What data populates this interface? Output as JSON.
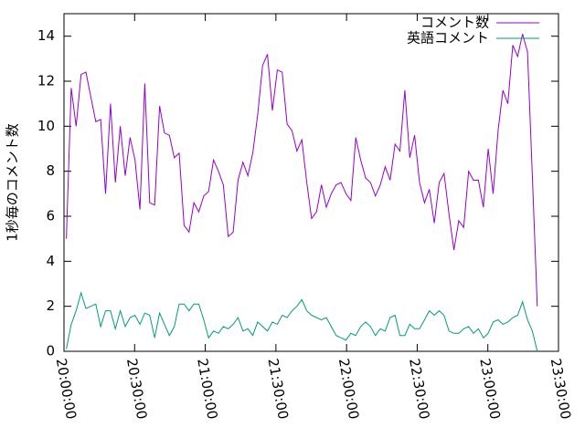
{
  "chart_data": {
    "type": "line",
    "y_label": "1秒毎のコメント数",
    "x": [
      72060,
      72185,
      72310,
      72435,
      72560,
      72685,
      72810,
      72935,
      73060,
      73185,
      73310,
      73435,
      73560,
      73685,
      73810,
      73935,
      74060,
      74185,
      74310,
      74435,
      74560,
      74685,
      74810,
      74935,
      75060,
      75185,
      75310,
      75435,
      75560,
      75685,
      75810,
      75935,
      76060,
      76185,
      76310,
      76435,
      76560,
      76685,
      76810,
      76935,
      77060,
      77185,
      77310,
      77435,
      77560,
      77685,
      77810,
      77935,
      78060,
      78185,
      78310,
      78435,
      78560,
      78685,
      78810,
      78935,
      79060,
      79185,
      79310,
      79435,
      79560,
      79685,
      79810,
      79935,
      80060,
      80185,
      80310,
      80435,
      80560,
      80685,
      80810,
      80935,
      81060,
      81185,
      81310,
      81435,
      81560,
      81685,
      81810,
      81935,
      82060,
      82185,
      82310,
      82435,
      82560,
      82685,
      82810,
      82935,
      83060,
      83185,
      83310,
      83435,
      83560,
      83685,
      83810,
      83935,
      84060
    ],
    "series": [
      {
        "name": "コメント数",
        "color": "#9400d3",
        "values": [
          5,
          11.7,
          10,
          12.3,
          12.4,
          11.3,
          10.2,
          10.3,
          7,
          11,
          7.5,
          10,
          7.8,
          9.5,
          8.5,
          6.3,
          11.9,
          6.6,
          6.5,
          10.9,
          9.7,
          9.6,
          8.6,
          8.8,
          5.6,
          5.3,
          6.6,
          6.2,
          6.9,
          7.1,
          8.5,
          8.0,
          7.4,
          5.1,
          5.3,
          7.6,
          8.4,
          7.8,
          8.8,
          10.5,
          12.7,
          13.2,
          10.7,
          12.5,
          12.4,
          10.1,
          9.8,
          8.9,
          9.4,
          7.5,
          5.9,
          6.2,
          7.4,
          6.4,
          7.0,
          7.4,
          7.5,
          7.0,
          6.7,
          9.5,
          8.5,
          7.7,
          7.5,
          6.9,
          7.4,
          8.2,
          7.6,
          9.2,
          8.9,
          11.6,
          8.6,
          9.6,
          7.5,
          6.6,
          7.2,
          5.7,
          7.5,
          7.9,
          6.1,
          4.5,
          5.8,
          5.5,
          8.0,
          7.6,
          7.6,
          6.4,
          9.0,
          7.0,
          9.8,
          11.6,
          11.0,
          13.6,
          13.1,
          14.1,
          13.3,
          7.8,
          2.0
        ]
      },
      {
        "name": "英語コメント",
        "color": "#009e73",
        "values": [
          0.1,
          1.2,
          1.8,
          2.6,
          1.9,
          2.0,
          2.1,
          1.1,
          1.8,
          1.8,
          1.0,
          1.8,
          1.1,
          1.5,
          1.6,
          1.2,
          1.7,
          1.6,
          0.6,
          1.7,
          1.2,
          0.7,
          1.1,
          2.1,
          2.1,
          1.8,
          2.1,
          2.1,
          1.4,
          0.6,
          0.9,
          0.8,
          1.1,
          1.0,
          1.2,
          1.5,
          0.9,
          1.0,
          0.7,
          1.3,
          1.1,
          0.9,
          1.3,
          1.2,
          1.6,
          1.5,
          1.8,
          2.0,
          2.3,
          1.8,
          1.6,
          1.5,
          1.4,
          1.5,
          1.1,
          0.7,
          0.6,
          0.5,
          0.8,
          0.7,
          1.1,
          1.3,
          1.1,
          0.7,
          1.0,
          0.9,
          1.5,
          1.6,
          0.7,
          0.7,
          1.2,
          1.0,
          1.0,
          1.4,
          1.8,
          1.6,
          1.8,
          1.6,
          0.9,
          0.8,
          0.8,
          1.0,
          1.1,
          0.8,
          1.0,
          0.6,
          0.8,
          1.3,
          1.4,
          1.2,
          1.3,
          1.5,
          1.6,
          2.2,
          1.4,
          0.9,
          0.0
        ]
      }
    ],
    "xlim": [
      72000,
      84600
    ],
    "xticks": [
      {
        "value": 72000,
        "label": "20:00:00"
      },
      {
        "value": 73800,
        "label": "20:30:00"
      },
      {
        "value": 75600,
        "label": "21:00:00"
      },
      {
        "value": 77400,
        "label": "21:30:00"
      },
      {
        "value": 79200,
        "label": "22:00:00"
      },
      {
        "value": 81000,
        "label": "22:30:00"
      },
      {
        "value": 82800,
        "label": "23:00:00"
      },
      {
        "value": 84600,
        "label": "23:30:00"
      }
    ],
    "ylim": [
      0,
      15
    ],
    "yticks": [
      0,
      2,
      4,
      6,
      8,
      10,
      12,
      14
    ],
    "grid": false,
    "legend": "top-right"
  }
}
